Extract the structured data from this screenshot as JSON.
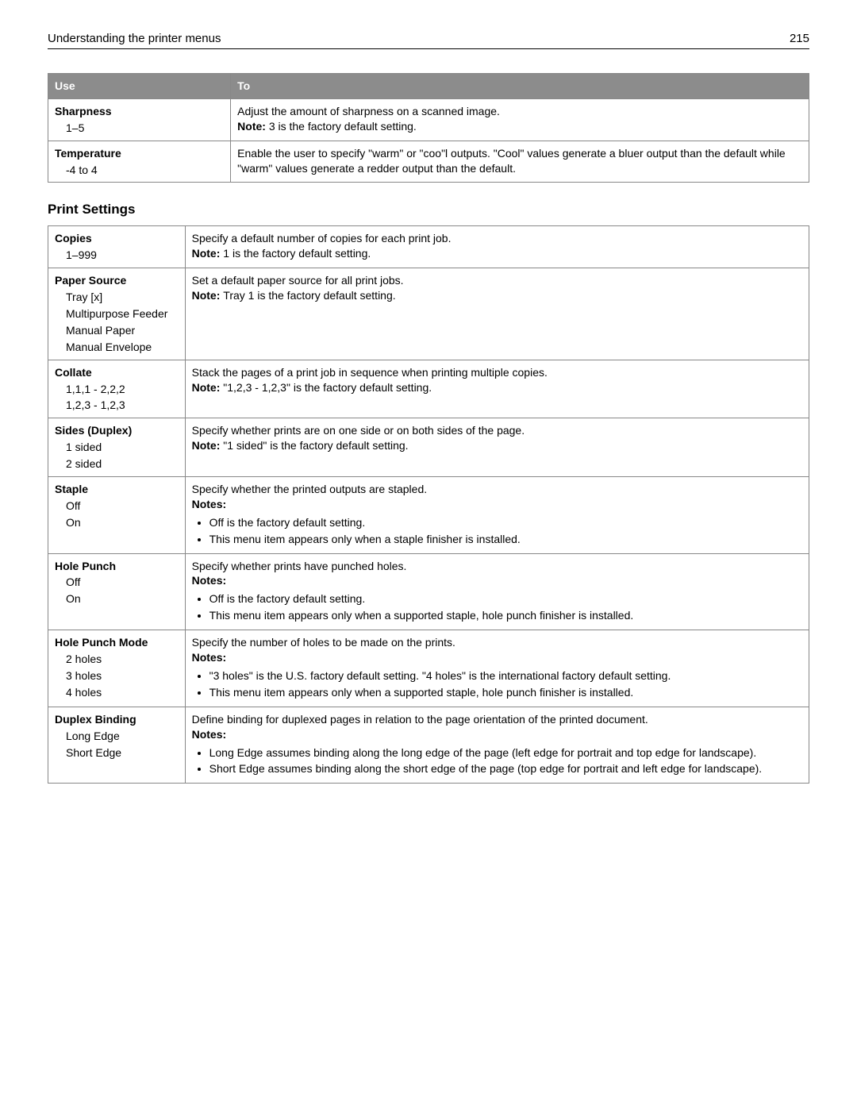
{
  "header": {
    "title": "Understanding the printer menus",
    "page": "215"
  },
  "table1": {
    "head_use": "Use",
    "head_to": "To",
    "rows": [
      {
        "name": "Sharpness",
        "opts": [
          "1–5"
        ],
        "desc": "Adjust the amount of sharpness on a scanned image.",
        "note": "3 is the factory default setting."
      },
      {
        "name": "Temperature",
        "opts": [
          "-4 to 4"
        ],
        "desc": "Enable the user to specify \"warm\" or \"coo\"l outputs. \"Cool\" values generate a bluer output than the default while \"warm\" values generate a redder output than the default."
      }
    ]
  },
  "section_title": "Print Settings",
  "table2": {
    "rows": [
      {
        "name": "Copies",
        "opts": [
          "1–999"
        ],
        "desc": "Specify a default number of copies for each print job.",
        "note": "1 is the factory default setting."
      },
      {
        "name": "Paper Source",
        "opts": [
          "Tray [x]",
          "Multipurpose Feeder",
          "Manual Paper",
          "Manual Envelope"
        ],
        "desc": "Set a default paper source for all print jobs.",
        "note": "Tray 1 is the factory default setting."
      },
      {
        "name": "Collate",
        "opts": [
          "1,1,1 - 2,2,2",
          "1,2,3 - 1,2,3"
        ],
        "desc": "Stack the pages of a print job in sequence when printing multiple copies.",
        "note": "\"1,2,3 - 1,2,3\" is the factory default setting."
      },
      {
        "name": "Sides (Duplex)",
        "opts": [
          "1 sided",
          "2 sided"
        ],
        "desc": "Specify whether prints are on one side or on both sides of the page.",
        "note": "\"1 sided\" is the factory default setting."
      },
      {
        "name": "Staple",
        "opts": [
          "Off",
          "On"
        ],
        "desc": "Specify whether the printed outputs are stapled.",
        "notes_label": "Notes:",
        "notes": [
          "Off is the factory default setting.",
          "This menu item appears only when a staple finisher is installed."
        ]
      },
      {
        "name": "Hole Punch",
        "opts": [
          "Off",
          "On"
        ],
        "desc": "Specify whether prints have punched holes.",
        "notes_label": "Notes:",
        "notes": [
          "Off is the factory default setting.",
          "This menu item appears only when a supported staple, hole punch finisher is installed."
        ]
      },
      {
        "name": "Hole Punch Mode",
        "opts": [
          "2 holes",
          "3 holes",
          "4 holes"
        ],
        "desc": "Specify the number of holes to be made on the prints.",
        "notes_label": "Notes:",
        "notes": [
          "\"3 holes\" is the U.S. factory default setting. \"4 holes\" is the international factory default setting.",
          "This menu item appears only when a supported staple, hole punch finisher is installed."
        ]
      },
      {
        "name": "Duplex Binding",
        "opts": [
          "Long Edge",
          "Short Edge"
        ],
        "desc": "Define binding for duplexed pages in relation to the page orientation of the printed document.",
        "notes_label": "Notes:",
        "notes": [
          "Long Edge assumes binding along the long edge of the page (left edge for portrait and top edge for landscape).",
          "Short Edge assumes binding along the short edge of the page (top edge for portrait and left edge for landscape)."
        ]
      }
    ]
  },
  "labels": {
    "note": "Note:"
  }
}
